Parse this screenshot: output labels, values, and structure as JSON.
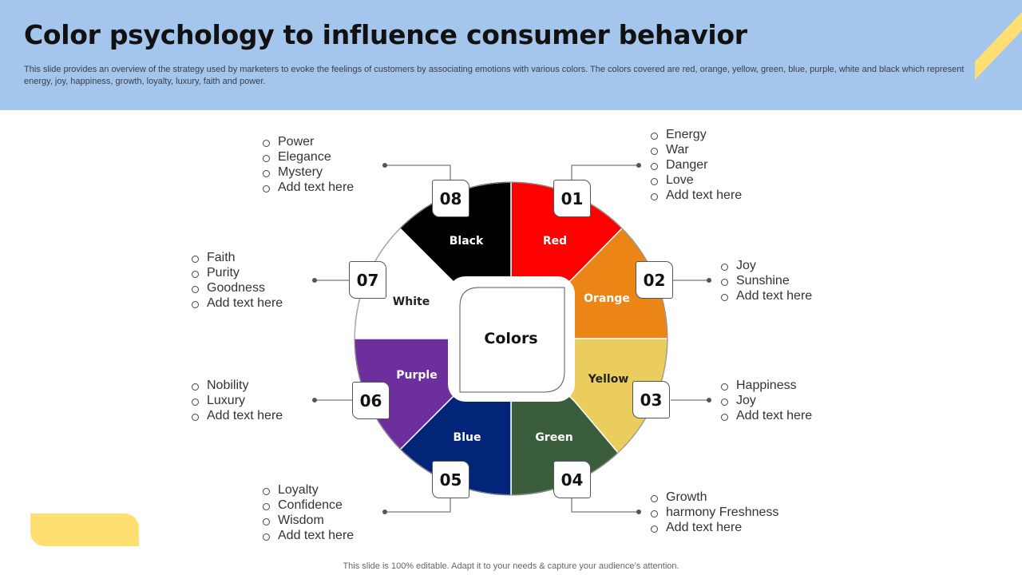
{
  "header": {
    "title": "Color psychology to influence consumer behavior",
    "subtitle": "This slide provides an overview of the strategy used by marketers to evoke the feelings of customers by associating emotions with various colors. The colors covered are red, orange, yellow, green, blue, purple, white and black which represent energy, joy, happiness, growth, loyalty, luxury, faith and power."
  },
  "center_label": "Colors",
  "segments": [
    {
      "number": "01",
      "name": "Red",
      "color": "#fe0000",
      "text_color": "#ffffff",
      "items": [
        "Energy",
        "War",
        "Danger",
        "Love",
        "Add text here"
      ]
    },
    {
      "number": "02",
      "name": "Orange",
      "color": "#ea8516",
      "text_color": "#ffffff",
      "items": [
        "Joy",
        "Sunshine",
        "Add text here"
      ]
    },
    {
      "number": "03",
      "name": "Yellow",
      "color": "#ebcd5e",
      "text_color": "#222222",
      "items": [
        "Happiness",
        "Joy",
        "Add text here"
      ]
    },
    {
      "number": "04",
      "name": "Green",
      "color": "#3a5e3c",
      "text_color": "#ffffff",
      "items": [
        "Growth",
        "harmony Freshness",
        "Add text here"
      ]
    },
    {
      "number": "05",
      "name": "Blue",
      "color": "#02257a",
      "text_color": "#ffffff",
      "items": [
        "Loyalty",
        "Confidence",
        "Wisdom",
        "Add text here"
      ]
    },
    {
      "number": "06",
      "name": "Purple",
      "color": "#6d2e9e",
      "text_color": "#ffffff",
      "items": [
        "Nobility",
        "Luxury",
        "Add text here"
      ]
    },
    {
      "number": "07",
      "name": "White",
      "color": "#ffffff",
      "text_color": "#222222",
      "items": [
        "Faith",
        "Purity",
        "Goodness",
        "Add text here"
      ]
    },
    {
      "number": "08",
      "name": "Black",
      "color": "#000000",
      "text_color": "#ffffff",
      "items": [
        "Power",
        "Elegance",
        "Mystery",
        "Add text here"
      ]
    }
  ],
  "footer": "This slide is 100% editable. Adapt it to your needs & capture your audience’s attention."
}
